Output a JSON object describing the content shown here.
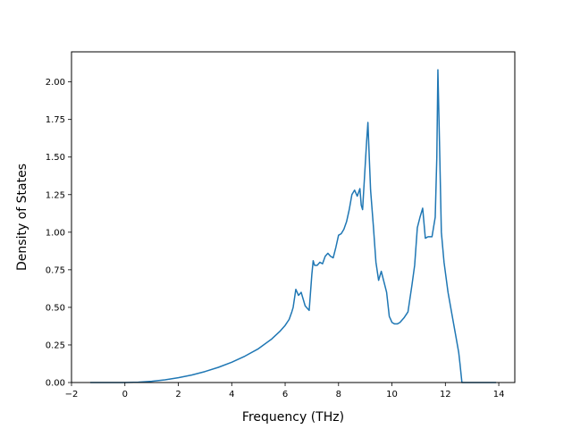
{
  "chart_data": {
    "type": "line",
    "title": "",
    "xlabel": "Frequency (THz)",
    "ylabel": "Density of States",
    "xlim": [
      -2,
      14.6
    ],
    "ylim": [
      0,
      2.2
    ],
    "xticks": [
      -2,
      0,
      2,
      4,
      6,
      8,
      10,
      12,
      14
    ],
    "xtick_labels": [
      "−2",
      "0",
      "2",
      "4",
      "6",
      "8",
      "10",
      "12",
      "14"
    ],
    "yticks": [
      0,
      0.25,
      0.5,
      0.75,
      1.0,
      1.25,
      1.5,
      1.75,
      2.0
    ],
    "ytick_labels": [
      "0.00",
      "0.25",
      "0.50",
      "0.75",
      "1.00",
      "1.25",
      "1.50",
      "1.75",
      "2.00"
    ],
    "grid": false,
    "legend": "none",
    "line_color": "#1f77b4",
    "series": [
      {
        "x": [
          -1.3,
          -1.0,
          -0.5,
          0,
          0.5,
          1.0,
          1.5,
          2.0,
          2.5,
          3.0,
          3.5,
          4.0,
          4.5,
          5.0,
          5.5,
          5.8,
          6.0,
          6.15,
          6.25,
          6.3,
          6.4,
          6.5,
          6.6,
          6.75,
          6.85,
          6.9,
          7.0,
          7.05,
          7.1,
          7.2,
          7.3,
          7.4,
          7.5,
          7.6,
          7.7,
          7.8,
          7.9,
          8.0,
          8.1,
          8.2,
          8.3,
          8.4,
          8.5,
          8.6,
          8.7,
          8.8,
          8.85,
          8.9,
          9.0,
          9.05,
          9.1,
          9.15,
          9.2,
          9.3,
          9.4,
          9.5,
          9.6,
          9.7,
          9.8,
          9.9,
          9.95,
          10.0,
          10.1,
          10.2,
          10.3,
          10.45,
          10.6,
          10.75,
          10.85,
          10.95,
          11.05,
          11.15,
          11.25,
          11.35,
          11.5,
          11.62,
          11.68,
          11.72,
          11.78,
          11.85,
          11.95,
          12.1,
          12.25,
          12.4,
          12.5,
          12.55,
          12.62,
          12.8,
          13.5,
          13.9
        ],
        "y": [
          0,
          0,
          0,
          0,
          0.002,
          0.008,
          0.018,
          0.032,
          0.05,
          0.073,
          0.101,
          0.135,
          0.176,
          0.225,
          0.29,
          0.34,
          0.38,
          0.42,
          0.47,
          0.5,
          0.62,
          0.58,
          0.6,
          0.51,
          0.49,
          0.48,
          0.72,
          0.81,
          0.78,
          0.78,
          0.8,
          0.79,
          0.84,
          0.86,
          0.84,
          0.83,
          0.9,
          0.98,
          0.99,
          1.02,
          1.07,
          1.15,
          1.25,
          1.28,
          1.24,
          1.29,
          1.18,
          1.15,
          1.45,
          1.6,
          1.73,
          1.5,
          1.28,
          1.05,
          0.8,
          0.68,
          0.74,
          0.67,
          0.6,
          0.44,
          0.42,
          0.4,
          0.39,
          0.39,
          0.4,
          0.43,
          0.47,
          0.65,
          0.78,
          1.03,
          1.1,
          1.16,
          0.96,
          0.97,
          0.97,
          1.1,
          1.5,
          2.08,
          1.6,
          1.0,
          0.8,
          0.6,
          0.45,
          0.3,
          0.2,
          0.12,
          0,
          0,
          0,
          0
        ]
      }
    ]
  }
}
